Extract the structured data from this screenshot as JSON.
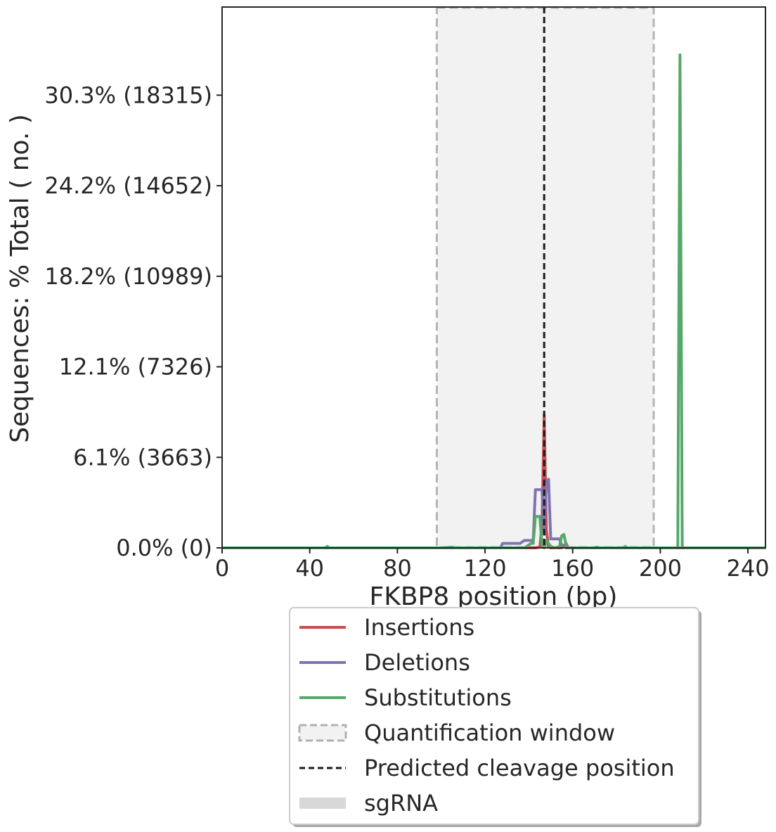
{
  "chart_data": {
    "type": "line",
    "title": "",
    "xlabel": "FKBP8 position (bp)",
    "ylabel": "Sequences: % Total ( no. )",
    "xlim": [
      0,
      248
    ],
    "ylim": [
      0,
      36.2
    ],
    "x_ticks": [
      0,
      40,
      80,
      120,
      160,
      200,
      240
    ],
    "x_tick_labels": [
      "0",
      "40",
      "80",
      "120",
      "160",
      "200",
      "240"
    ],
    "y_ticks": [
      0,
      6.06,
      12.12,
      18.18,
      24.24,
      30.3
    ],
    "y_tick_labels": [
      "0.0% (0)",
      "6.1% (3663)",
      "12.1% (7326)",
      "18.2% (10989)",
      "24.2% (14652)",
      "30.3% (18315)"
    ],
    "grid": false,
    "legend_position": "below",
    "quantification_window": [
      98,
      197
    ],
    "cleavage_position": 147,
    "series": [
      {
        "name": "Insertions",
        "color": "#c44e52",
        "points": [
          [
            0,
            0
          ],
          [
            143,
            0
          ],
          [
            145,
            0.05
          ],
          [
            146,
            1.5
          ],
          [
            147,
            8.9
          ],
          [
            148,
            1.2
          ],
          [
            149,
            0.05
          ],
          [
            150,
            0
          ],
          [
            155,
            0
          ],
          [
            157,
            0.3
          ],
          [
            158,
            0
          ],
          [
            248,
            0
          ]
        ]
      },
      {
        "name": "Deletions",
        "color": "#8172b2",
        "points": [
          [
            0,
            0
          ],
          [
            127,
            0
          ],
          [
            128,
            0.3
          ],
          [
            136,
            0.3
          ],
          [
            138,
            0.5
          ],
          [
            142,
            0.5
          ],
          [
            143,
            3.9
          ],
          [
            146,
            3.9
          ],
          [
            147,
            0.9
          ],
          [
            148,
            4.4
          ],
          [
            149,
            4.6
          ],
          [
            150,
            0.6
          ],
          [
            154,
            0.6
          ],
          [
            155,
            0.2
          ],
          [
            157,
            0
          ],
          [
            248,
            0
          ]
        ]
      },
      {
        "name": "Substitutions",
        "color": "#55a868",
        "points": [
          [
            0,
            0
          ],
          [
            47,
            0
          ],
          [
            48,
            0.1
          ],
          [
            49,
            0
          ],
          [
            100,
            0
          ],
          [
            105,
            0.05
          ],
          [
            106,
            0
          ],
          [
            138,
            0
          ],
          [
            141,
            0.3
          ],
          [
            142,
            0.3
          ],
          [
            143,
            2.1
          ],
          [
            145,
            2.1
          ],
          [
            146,
            0.2
          ],
          [
            147,
            0
          ],
          [
            148,
            0.5
          ],
          [
            149,
            0.3
          ],
          [
            150,
            0.1
          ],
          [
            152,
            0
          ],
          [
            154,
            0.1
          ],
          [
            155,
            0.8
          ],
          [
            156,
            0.9
          ],
          [
            157,
            0.2
          ],
          [
            158,
            0
          ],
          [
            170,
            0
          ],
          [
            171,
            0.05
          ],
          [
            172,
            0
          ],
          [
            183,
            0
          ],
          [
            184,
            0.1
          ],
          [
            185,
            0
          ],
          [
            207,
            0
          ],
          [
            208,
            0.05
          ],
          [
            209,
            33.0
          ],
          [
            210,
            0.05
          ],
          [
            211,
            0
          ],
          [
            248,
            0
          ]
        ]
      }
    ],
    "legend": [
      {
        "label": "Insertions",
        "kind": "line",
        "color": "#c44e52"
      },
      {
        "label": "Deletions",
        "kind": "line",
        "color": "#8172b2"
      },
      {
        "label": "Substitutions",
        "kind": "line",
        "color": "#55a868"
      },
      {
        "label": "Quantification window",
        "kind": "window",
        "color": "#b0b0b0"
      },
      {
        "label": "Predicted cleavage position",
        "kind": "dashed",
        "color": "#1a1a1a"
      },
      {
        "label": "sgRNA",
        "kind": "band",
        "color": "#d8d8d8"
      }
    ]
  }
}
